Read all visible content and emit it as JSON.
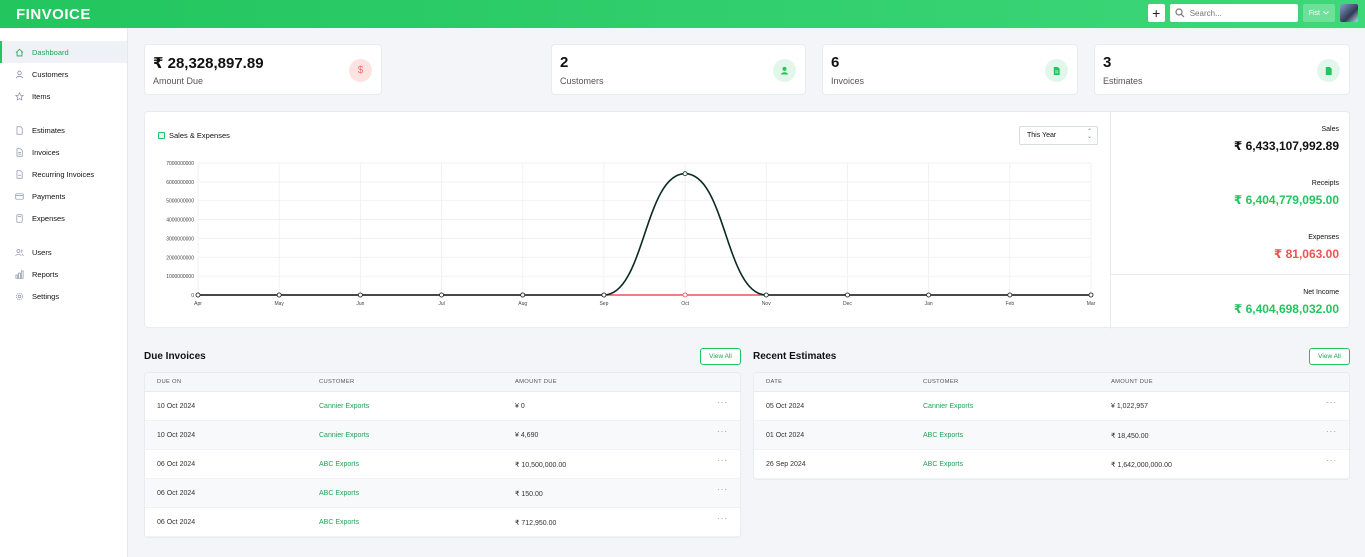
{
  "app": {
    "logo": "FINVOICE"
  },
  "header": {
    "search_placeholder": "Search...",
    "language": "Fist"
  },
  "sidebar": {
    "groups": [
      [
        {
          "label": "Dashboard",
          "icon": "home-icon",
          "active": true
        },
        {
          "label": "Customers",
          "icon": "user-icon"
        },
        {
          "label": "Items",
          "icon": "star-icon"
        }
      ],
      [
        {
          "label": "Estimates",
          "icon": "document-icon"
        },
        {
          "label": "Invoices",
          "icon": "document-icon"
        },
        {
          "label": "Recurring Invoices",
          "icon": "document-icon"
        },
        {
          "label": "Payments",
          "icon": "credit-card-icon"
        },
        {
          "label": "Expenses",
          "icon": "calculator-icon"
        }
      ],
      [
        {
          "label": "Users",
          "icon": "users-icon"
        },
        {
          "label": "Reports",
          "icon": "chart-icon"
        },
        {
          "label": "Settings",
          "icon": "gear-icon"
        }
      ]
    ]
  },
  "stats": {
    "amount_due": {
      "value": "₹ 28,328,897.89",
      "label": "Amount Due",
      "icon": "dollar-icon"
    },
    "customers": {
      "value": "2",
      "label": "Customers",
      "icon": "user-icon"
    },
    "invoices": {
      "value": "6",
      "label": "Invoices",
      "icon": "document-icon"
    },
    "estimates": {
      "value": "3",
      "label": "Estimates",
      "icon": "document-icon"
    }
  },
  "chart_section": {
    "title": "Sales & Expenses",
    "period": "This Year"
  },
  "chart_data": {
    "type": "line",
    "categories": [
      "Apr",
      "May",
      "Jun",
      "Jul",
      "Aug",
      "Sep",
      "Oct",
      "Nov",
      "Dec",
      "Jan",
      "Feb",
      "Mar"
    ],
    "y_ticks": [
      "0",
      "1000000000",
      "2000000000",
      "3000000000",
      "4000000000",
      "5000000000",
      "6000000000",
      "7000000000"
    ],
    "ylim": [
      0,
      7000000000
    ],
    "grid": true,
    "series": [
      {
        "values": [
          0,
          0,
          0,
          0,
          0,
          0,
          6433107992.89,
          0,
          0,
          0,
          0,
          0
        ],
        "color": "#0b2a26"
      },
      {
        "values": [
          0,
          0,
          0,
          0,
          0,
          0,
          81063,
          0,
          0,
          0,
          0,
          0
        ],
        "color": "#f05252"
      }
    ]
  },
  "summary": {
    "sales_label": "Sales",
    "sales_value": "₹ 6,433,107,992.89",
    "receipts_label": "Receipts",
    "receipts_value": "₹ 6,404,779,095.00",
    "expenses_label": "Expenses",
    "expenses_value": "₹ 81,063.00",
    "net_label": "Net Income",
    "net_value": "₹ 6,404,698,032.00"
  },
  "due_invoices": {
    "title": "Due Invoices",
    "view_all": "View All",
    "columns": [
      "DUE ON",
      "CUSTOMER",
      "AMOUNT DUE"
    ],
    "rows": [
      {
        "date": "10 Oct 2024",
        "customer": "Cannier Exports",
        "amount": "¥ 0"
      },
      {
        "date": "10 Oct 2024",
        "customer": "Cannier Exports",
        "amount": "¥ 4,690"
      },
      {
        "date": "06 Oct 2024",
        "customer": "ABC Exports",
        "amount": "₹ 10,500,000.00"
      },
      {
        "date": "06 Oct 2024",
        "customer": "ABC Exports",
        "amount": "₹ 150.00"
      },
      {
        "date": "06 Oct 2024",
        "customer": "ABC Exports",
        "amount": "₹ 712,950.00"
      }
    ]
  },
  "recent_estimates": {
    "title": "Recent Estimates",
    "view_all": "View All",
    "columns": [
      "DATE",
      "CUSTOMER",
      "AMOUNT DUE"
    ],
    "rows": [
      {
        "date": "05 Oct 2024",
        "customer": "Cannier Exports",
        "amount": "¥ 1,022,957"
      },
      {
        "date": "01 Oct 2024",
        "customer": "ABC Exports",
        "amount": "₹ 18,450.00"
      },
      {
        "date": "26 Sep 2024",
        "customer": "ABC Exports",
        "amount": "₹ 1,642,000,000.00"
      }
    ]
  },
  "colors": {
    "accent": "#22c55e",
    "danger": "#f05252",
    "text": "#111111"
  }
}
